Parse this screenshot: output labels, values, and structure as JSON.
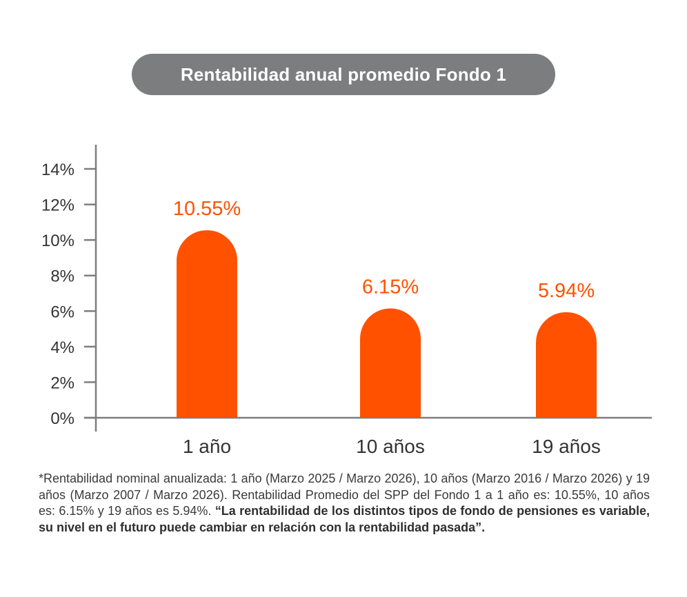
{
  "title": "Rentabilidad anual promedio Fondo 1",
  "colors": {
    "bar": "#ff5100",
    "label": "#ff5100",
    "axis": "#7b7d7f",
    "tick_text": "#333333",
    "title_bg": "#7b7d7f"
  },
  "chart_data": {
    "type": "bar",
    "title": "Rentabilidad anual promedio Fondo 1",
    "categories": [
      "1 año",
      "10 años",
      "19 años"
    ],
    "values": [
      10.55,
      6.15,
      5.94
    ],
    "data_labels": [
      "10.55%",
      "6.15%",
      "5.94%"
    ],
    "y_ticks": [
      "0%",
      "2%",
      "4%",
      "6%",
      "8%",
      "10%",
      "12%",
      "14%"
    ],
    "y_tick_values": [
      0,
      2,
      4,
      6,
      8,
      10,
      12,
      14
    ],
    "ylim": [
      0,
      15.3
    ],
    "xlabel": "",
    "ylabel": "",
    "grid": false,
    "legend": "none"
  },
  "footnote": {
    "text": "*Rentabilidad nominal anualizada: 1 año (Marzo 2025 / Marzo 2026), 10 años (Marzo 2016 / Marzo 2026) y 19 años (Marzo 2007 / Marzo 2026). Rentabilidad Promedio del SPP del Fondo 1 a 1 año es: 10.55%, 10 años es: 6.15% y 19 años es 5.94%.",
    "bold": "“La rentabilidad de los distintos tipos de fondo de pensiones es variable, su nivel en el futuro puede cambiar en relación con la rentabilidad pasada”."
  }
}
